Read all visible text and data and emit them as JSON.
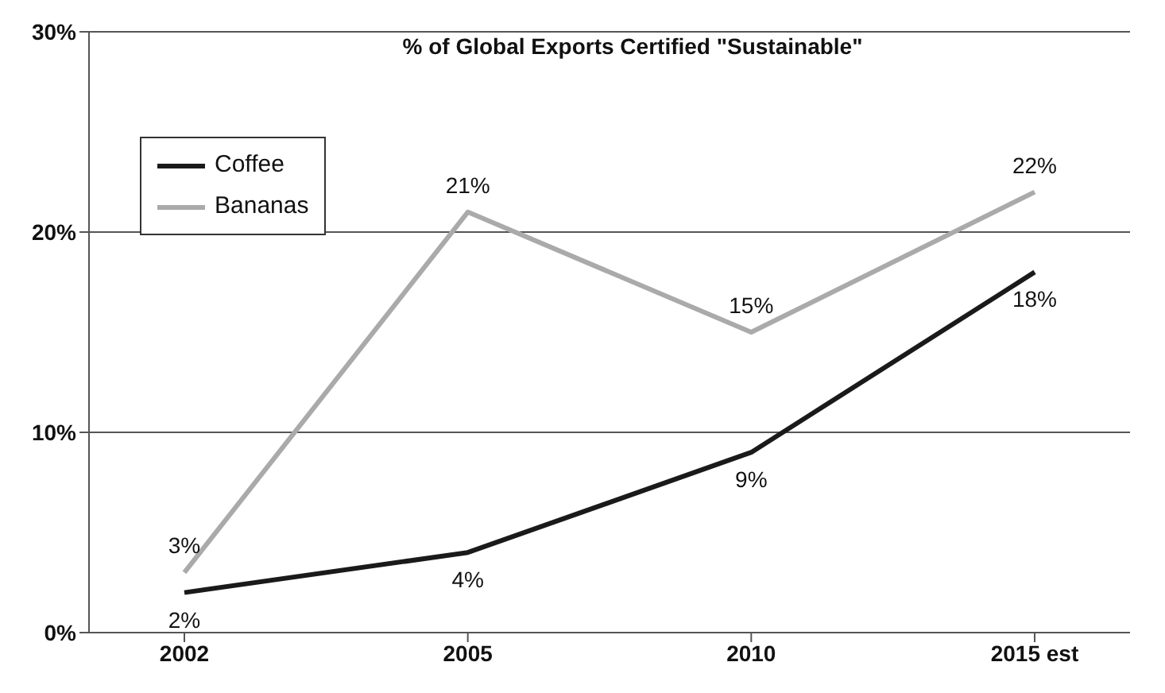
{
  "chart_data": {
    "type": "line",
    "title": "% of Global Exports Certified \"Sustainable\"",
    "categories": [
      "2002",
      "2005",
      "2010",
      "2015 est"
    ],
    "series": [
      {
        "name": "Coffee",
        "color": "#1a1a1a",
        "values": [
          2,
          4,
          9,
          18
        ],
        "value_labels": [
          "2%",
          "4%",
          "9%",
          "18%"
        ]
      },
      {
        "name": "Bananas",
        "color": "#aaaaaa",
        "values": [
          3,
          21,
          15,
          22
        ],
        "value_labels": [
          "3%",
          "21%",
          "15%",
          "22%"
        ]
      }
    ],
    "ylim": [
      0,
      30
    ],
    "yticks": [
      {
        "value": 0,
        "label": "0%"
      },
      {
        "value": 10,
        "label": "10%"
      },
      {
        "value": 20,
        "label": "20%"
      },
      {
        "value": 30,
        "label": "30%"
      }
    ],
    "grid": "y",
    "legend": "top left",
    "marker": "none",
    "line_style": "solid"
  }
}
